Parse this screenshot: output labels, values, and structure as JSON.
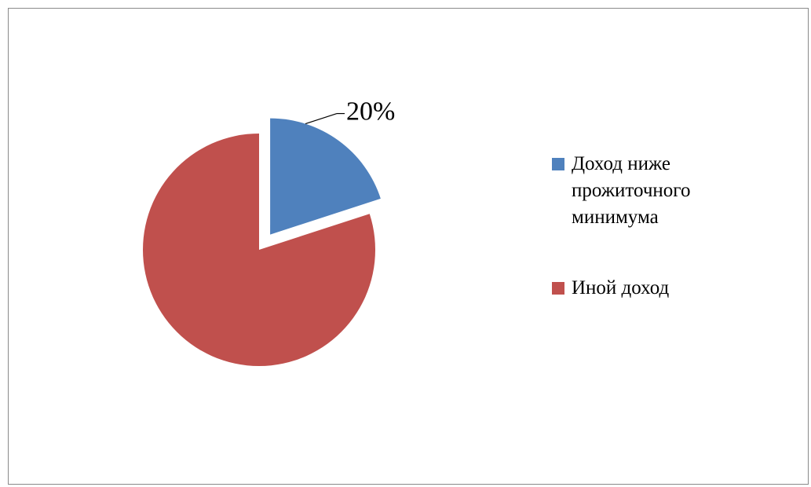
{
  "chart_data": {
    "type": "pie",
    "categories": [
      "Доход ниже прожиточного минимума",
      "Иной доход"
    ],
    "values": [
      20,
      80
    ],
    "data_labels": [
      "20%",
      ""
    ],
    "colors": [
      "#4F81BD",
      "#C0504D"
    ],
    "exploded": [
      true,
      false
    ],
    "legend_position": "right",
    "title": ""
  }
}
